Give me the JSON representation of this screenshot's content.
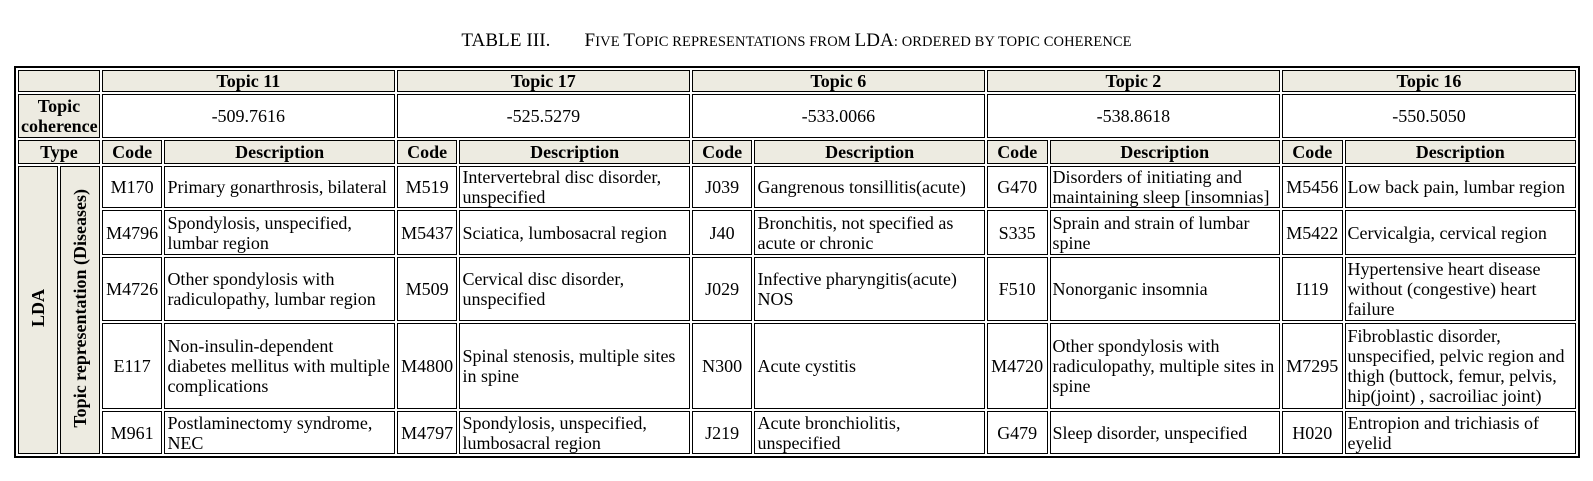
{
  "caption": {
    "number": "TABLE III.",
    "title_parts": [
      {
        "t": "F",
        "big": true
      },
      {
        "t": "IVE ",
        "big": false
      },
      {
        "t": "T",
        "big": true
      },
      {
        "t": "OPIC REPRESENTATIONS FROM ",
        "big": false
      },
      {
        "t": "LDA",
        "big": true
      },
      {
        "t": ": ORDERED BY TOPIC COHERENCE",
        "big": false
      }
    ]
  },
  "headers": {
    "topic_coherence": "Topic coherence",
    "type": "Type",
    "code": "Code",
    "description": "Description",
    "lda": "LDA",
    "topic_representation": "Topic representation (Diseases)"
  },
  "topics": [
    {
      "name": "Topic 11",
      "coherence": "-509.7616",
      "rows": [
        {
          "code": "M170",
          "desc": "Primary gonarthrosis, bilateral"
        },
        {
          "code": "M4796",
          "desc": "Spondylosis, unspecified, lumbar region"
        },
        {
          "code": "M4726",
          "desc": "Other spondylosis with radiculopathy, lumbar region"
        },
        {
          "code": "E117",
          "desc": "Non-insulin-dependent diabetes mellitus with multiple complications"
        },
        {
          "code": "M961",
          "desc": "Postlaminectomy syndrome, NEC"
        }
      ]
    },
    {
      "name": "Topic 17",
      "coherence": "-525.5279",
      "rows": [
        {
          "code": "M519",
          "desc": "Intervertebral disc disorder, unspecified"
        },
        {
          "code": "M5437",
          "desc": "Sciatica, lumbosacral region"
        },
        {
          "code": "M509",
          "desc": "Cervical disc disorder, unspecified"
        },
        {
          "code": "M4800",
          "desc": "Spinal stenosis, multiple sites in spine"
        },
        {
          "code": "M4797",
          "desc": "Spondylosis, unspecified, lumbosacral region"
        }
      ]
    },
    {
      "name": "Topic 6",
      "coherence": "-533.0066",
      "rows": [
        {
          "code": "J039",
          "desc": "Gangrenous tonsillitis(acute)"
        },
        {
          "code": "J40",
          "desc": "Bronchitis, not specified as acute or chronic"
        },
        {
          "code": "J029",
          "desc": "Infective pharyngitis(acute) NOS"
        },
        {
          "code": "N300",
          "desc": "Acute cystitis"
        },
        {
          "code": "J219",
          "desc": "Acute bronchiolitis, unspecified"
        }
      ]
    },
    {
      "name": "Topic 2",
      "coherence": "-538.8618",
      "rows": [
        {
          "code": "G470",
          "desc": "Disorders of initiating and maintaining sleep [insomnias]"
        },
        {
          "code": "S335",
          "desc": "Sprain and strain of lumbar spine"
        },
        {
          "code": "F510",
          "desc": "Nonorganic insomnia"
        },
        {
          "code": "M4720",
          "desc": "Other spondylosis with radiculopathy, multiple sites in spine"
        },
        {
          "code": "G479",
          "desc": "Sleep disorder, unspecified"
        }
      ]
    },
    {
      "name": "Topic 16",
      "coherence": "-550.5050",
      "rows": [
        {
          "code": "M5456",
          "desc": "Low back pain, lumbar region"
        },
        {
          "code": "M5422",
          "desc": "Cervicalgia, cervical region"
        },
        {
          "code": "I119",
          "desc": "Hypertensive heart disease without (congestive) heart failure"
        },
        {
          "code": "M7295",
          "desc": "Fibroblastic disorder, unspecified, pelvic region and thigh (buttock, femur, pelvis, hip(joint) , sacroiliac joint)"
        },
        {
          "code": "H020",
          "desc": "Entropion and trichiasis of eyelid"
        }
      ]
    }
  ]
}
